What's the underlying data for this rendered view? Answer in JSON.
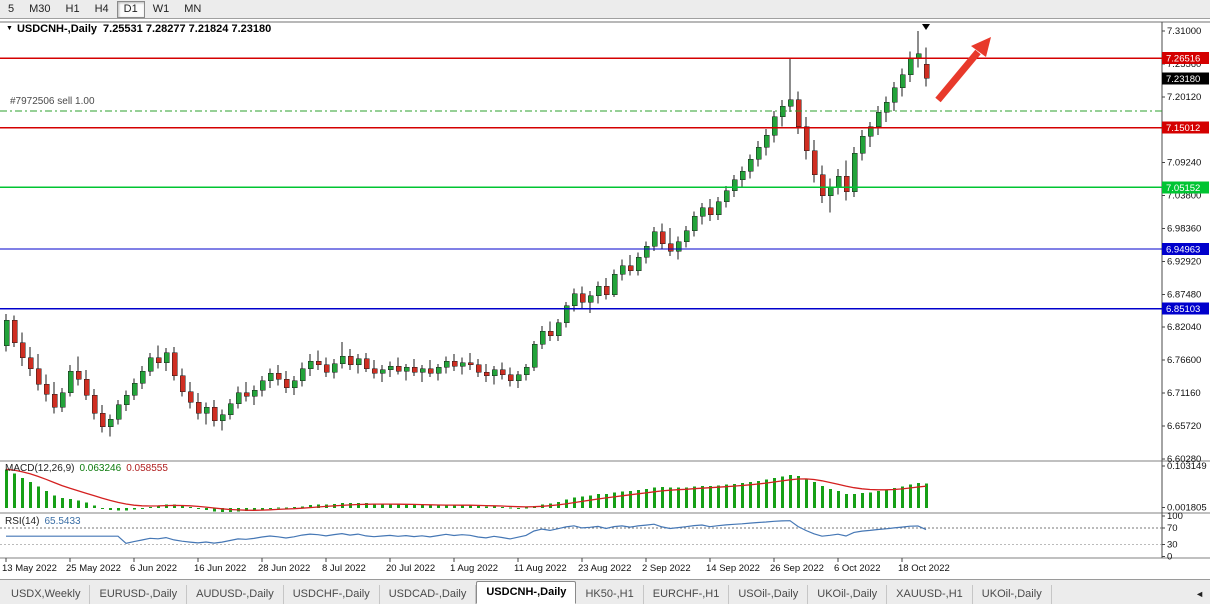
{
  "toolbar": {
    "periods": [
      "5",
      "M30",
      "H1",
      "H4",
      "D1",
      "W1",
      "MN"
    ],
    "active": "D1"
  },
  "chart": {
    "title": "USDCNH-,Daily",
    "ohlc": "7.25531 7.28277 7.21824 7.23180",
    "dropdown_icon": "▼"
  },
  "order": {
    "label": "#7972506 sell 1.00",
    "price": 7.178
  },
  "indicators": {
    "macd": {
      "label": "MACD(12,26,9)",
      "main_value": "0.063246",
      "signal_value": "0.058555",
      "scale_labels": [
        "0.103149",
        "0.001805"
      ],
      "start_value": 0.095
    },
    "rsi": {
      "label": "RSI(14)",
      "value": "65.5433",
      "levels": [
        "100",
        "70",
        "30",
        "0"
      ],
      "level_lines": [
        70,
        30
      ]
    }
  },
  "colors": {
    "candle_up": "#23a33a",
    "candle_down": "#cf2e22",
    "wick": "#1a1a1a",
    "red_line": "#d40000",
    "green_line": "#00c432",
    "blue_line": "#0000cc",
    "badge_current": "#000000",
    "macd_hist": "#16a016",
    "macd_signal": "#d42020",
    "rsi_line": "#4577b5",
    "order_line": "#2ca02c",
    "arrow": "#e8392b",
    "axis_text": "#111111",
    "separator": "#808080"
  },
  "chart_data": {
    "type": "candlestick",
    "symbol": "USDCNH-",
    "timeframe": "Daily",
    "current_price": {
      "value": 7.2318,
      "label": "7.23180"
    },
    "price_axis": {
      "max": 7.31,
      "step": 0.0544,
      "labels": [
        "7.31000",
        "7.25560",
        "7.20120",
        "7.14680",
        "7.09240",
        "7.03800",
        "6.98360",
        "6.92920",
        "6.87480",
        "6.82040",
        "6.76600",
        "6.71160",
        "6.65720",
        "6.60280"
      ]
    },
    "hlines": [
      {
        "price": 7.26516,
        "label": "7.26516",
        "color": "#d40000"
      },
      {
        "price": 7.15012,
        "label": "7.15012",
        "color": "#d40000"
      },
      {
        "price": 7.05152,
        "label": "7.05152",
        "color": "#00c432"
      },
      {
        "price": 6.94963,
        "label": "6.94963",
        "color": "#0000cc"
      },
      {
        "price": 6.85103,
        "label": "6.85103",
        "color": "#0000cc"
      }
    ],
    "x_ticks": [
      [
        0,
        "13 May 2022"
      ],
      [
        8,
        "25 May 2022"
      ],
      [
        16,
        "6 Jun 2022"
      ],
      [
        24,
        "16 Jun 2022"
      ],
      [
        32,
        "28 Jun 2022"
      ],
      [
        40,
        "8 Jul 2022"
      ],
      [
        48,
        "20 Jul 2022"
      ],
      [
        56,
        "1 Aug 2022"
      ],
      [
        64,
        "11 Aug 2022"
      ],
      [
        72,
        "23 Aug 2022"
      ],
      [
        80,
        "2 Sep 2022"
      ],
      [
        88,
        "14 Sep 2022"
      ],
      [
        96,
        "26 Sep 2022"
      ],
      [
        104,
        "6 Oct 2022"
      ],
      [
        112,
        "18 Oct 2022"
      ]
    ],
    "candles": [
      [
        6.79,
        6.842,
        6.78,
        6.832
      ],
      [
        6.832,
        6.84,
        6.788,
        6.795
      ],
      [
        6.795,
        6.812,
        6.756,
        6.77
      ],
      [
        6.77,
        6.788,
        6.74,
        6.752
      ],
      [
        6.752,
        6.776,
        6.716,
        6.726
      ],
      [
        6.726,
        6.742,
        6.698,
        6.71
      ],
      [
        6.71,
        6.73,
        6.678,
        6.688
      ],
      [
        6.688,
        6.72,
        6.68,
        6.712
      ],
      [
        6.712,
        6.758,
        6.706,
        6.748
      ],
      [
        6.748,
        6.772,
        6.724,
        6.734
      ],
      [
        6.734,
        6.75,
        6.7,
        6.708
      ],
      [
        6.708,
        6.718,
        6.668,
        6.678
      ],
      [
        6.678,
        6.692,
        6.646,
        6.656
      ],
      [
        6.656,
        6.676,
        6.64,
        6.668
      ],
      [
        6.668,
        6.7,
        6.66,
        6.692
      ],
      [
        6.692,
        6.716,
        6.682,
        6.708
      ],
      [
        6.708,
        6.736,
        6.7,
        6.728
      ],
      [
        6.728,
        6.756,
        6.718,
        6.748
      ],
      [
        6.748,
        6.778,
        6.74,
        6.77
      ],
      [
        6.77,
        6.79,
        6.752,
        6.762
      ],
      [
        6.762,
        6.786,
        6.748,
        6.778
      ],
      [
        6.778,
        6.788,
        6.732,
        6.74
      ],
      [
        6.74,
        6.752,
        6.706,
        6.714
      ],
      [
        6.714,
        6.73,
        6.686,
        6.696
      ],
      [
        6.696,
        6.712,
        6.668,
        6.678
      ],
      [
        6.678,
        6.696,
        6.66,
        6.688
      ],
      [
        6.688,
        6.7,
        6.656,
        6.666
      ],
      [
        6.666,
        6.684,
        6.65,
        6.676
      ],
      [
        6.676,
        6.702,
        6.668,
        6.694
      ],
      [
        6.694,
        6.722,
        6.686,
        6.712
      ],
      [
        6.712,
        6.73,
        6.698,
        6.706
      ],
      [
        6.706,
        6.724,
        6.692,
        6.716
      ],
      [
        6.716,
        6.74,
        6.706,
        6.732
      ],
      [
        6.732,
        6.752,
        6.72,
        6.744
      ],
      [
        6.744,
        6.758,
        6.724,
        6.734
      ],
      [
        6.734,
        6.748,
        6.712,
        6.72
      ],
      [
        6.72,
        6.74,
        6.708,
        6.732
      ],
      [
        6.732,
        6.762,
        6.722,
        6.752
      ],
      [
        6.752,
        6.776,
        6.74,
        6.764
      ],
      [
        6.764,
        6.782,
        6.75,
        6.758
      ],
      [
        6.758,
        6.77,
        6.738,
        6.746
      ],
      [
        6.746,
        6.768,
        6.736,
        6.76
      ],
      [
        6.76,
        6.796,
        6.752,
        6.772
      ],
      [
        6.772,
        6.784,
        6.75,
        6.758
      ],
      [
        6.758,
        6.776,
        6.744,
        6.768
      ],
      [
        6.768,
        6.778,
        6.746,
        6.752
      ],
      [
        6.752,
        6.766,
        6.736,
        6.744
      ],
      [
        6.744,
        6.758,
        6.73,
        6.75
      ],
      [
        6.75,
        6.764,
        6.738,
        6.756
      ],
      [
        6.756,
        6.77,
        6.742,
        6.748
      ],
      [
        6.748,
        6.76,
        6.732,
        6.754
      ],
      [
        6.754,
        6.768,
        6.74,
        6.746
      ],
      [
        6.746,
        6.758,
        6.73,
        6.752
      ],
      [
        6.752,
        6.766,
        6.738,
        6.744
      ],
      [
        6.744,
        6.76,
        6.732,
        6.754
      ],
      [
        6.754,
        6.772,
        6.744,
        6.764
      ],
      [
        6.764,
        6.776,
        6.748,
        6.756
      ],
      [
        6.756,
        6.77,
        6.742,
        6.762
      ],
      [
        6.762,
        6.778,
        6.75,
        6.758
      ],
      [
        6.758,
        6.768,
        6.738,
        6.746
      ],
      [
        6.746,
        6.76,
        6.73,
        6.74
      ],
      [
        6.74,
        6.756,
        6.726,
        6.75
      ],
      [
        6.75,
        6.762,
        6.734,
        6.742
      ],
      [
        6.742,
        6.754,
        6.722,
        6.732
      ],
      [
        6.732,
        6.748,
        6.72,
        6.742
      ],
      [
        6.742,
        6.76,
        6.732,
        6.754
      ],
      [
        6.754,
        6.798,
        6.748,
        6.792
      ],
      [
        6.792,
        6.822,
        6.784,
        6.814
      ],
      [
        6.814,
        6.83,
        6.798,
        6.806
      ],
      [
        6.806,
        6.834,
        6.798,
        6.828
      ],
      [
        6.828,
        6.862,
        6.82,
        6.856
      ],
      [
        6.856,
        6.884,
        6.846,
        6.876
      ],
      [
        6.876,
        6.888,
        6.852,
        6.862
      ],
      [
        6.862,
        6.88,
        6.844,
        6.872
      ],
      [
        6.872,
        6.896,
        6.86,
        6.888
      ],
      [
        6.888,
        6.902,
        6.866,
        6.874
      ],
      [
        6.874,
        6.916,
        6.87,
        6.908
      ],
      [
        6.908,
        6.932,
        6.898,
        6.922
      ],
      [
        6.922,
        6.94,
        6.906,
        6.914
      ],
      [
        6.914,
        6.944,
        6.906,
        6.936
      ],
      [
        6.936,
        6.962,
        6.926,
        6.954
      ],
      [
        6.954,
        6.986,
        6.946,
        6.978
      ],
      [
        6.978,
        6.992,
        6.95,
        6.958
      ],
      [
        6.958,
        6.984,
        6.938,
        6.946
      ],
      [
        6.946,
        6.97,
        6.932,
        6.962
      ],
      [
        6.962,
        6.988,
        6.952,
        6.98
      ],
      [
        6.98,
        7.012,
        6.97,
        7.004
      ],
      [
        7.004,
        7.026,
        6.99,
        7.018
      ],
      [
        7.018,
        7.032,
        6.996,
        7.006
      ],
      [
        7.006,
        7.036,
        6.998,
        7.028
      ],
      [
        7.028,
        7.054,
        7.018,
        7.046
      ],
      [
        7.046,
        7.072,
        7.036,
        7.064
      ],
      [
        7.064,
        7.086,
        7.052,
        7.078
      ],
      [
        7.078,
        7.106,
        7.066,
        7.098
      ],
      [
        7.098,
        7.128,
        7.086,
        7.118
      ],
      [
        7.118,
        7.148,
        7.104,
        7.138
      ],
      [
        7.138,
        7.178,
        7.126,
        7.168
      ],
      [
        7.168,
        7.196,
        7.152,
        7.186
      ],
      [
        7.186,
        7.264,
        7.176,
        7.196
      ],
      [
        7.196,
        7.21,
        7.14,
        7.152
      ],
      [
        7.152,
        7.168,
        7.098,
        7.112
      ],
      [
        7.112,
        7.13,
        7.06,
        7.072
      ],
      [
        7.072,
        7.088,
        7.026,
        7.038
      ],
      [
        7.038,
        7.066,
        7.01,
        7.052
      ],
      [
        7.052,
        7.082,
        7.04,
        7.07
      ],
      [
        7.07,
        7.096,
        7.03,
        7.044
      ],
      [
        7.044,
        7.118,
        7.036,
        7.108
      ],
      [
        7.108,
        7.146,
        7.096,
        7.136
      ],
      [
        7.136,
        7.16,
        7.118,
        7.152
      ],
      [
        7.152,
        7.186,
        7.138,
        7.176
      ],
      [
        7.176,
        7.202,
        7.16,
        7.192
      ],
      [
        7.192,
        7.226,
        7.178,
        7.216
      ],
      [
        7.216,
        7.248,
        7.202,
        7.238
      ],
      [
        7.238,
        7.276,
        7.226,
        7.266
      ],
      [
        7.266,
        7.31,
        7.25,
        7.272
      ],
      [
        7.25531,
        7.28277,
        7.21824,
        7.2318
      ]
    ]
  },
  "tabs": {
    "items": [
      "USDX,Weekly",
      "EURUSD-,Daily",
      "AUDUSD-,Daily",
      "USDCHF-,Daily",
      "USDCAD-,Daily",
      "USDCNH-,Daily",
      "HK50-,H1",
      "EURCHF-,H1",
      "USOil-,Daily",
      "UKOil-,Daily",
      "XAUUSD-,H1",
      "UKOil-,Daily"
    ],
    "active_index": 5,
    "scroll_icon": "◄"
  }
}
